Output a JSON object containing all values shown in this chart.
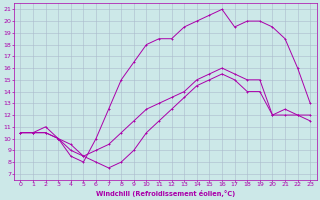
{
  "xlabel": "Windchill (Refroidissement éolien,°C)",
  "background_color": "#cce8e8",
  "grid_color": "#aabbcc",
  "line_color": "#aa00aa",
  "xlim": [
    -0.5,
    23.5
  ],
  "ylim": [
    6.5,
    21.5
  ],
  "xticks": [
    0,
    1,
    2,
    3,
    4,
    5,
    6,
    7,
    8,
    9,
    10,
    11,
    12,
    13,
    14,
    15,
    16,
    17,
    18,
    19,
    20,
    21,
    22,
    23
  ],
  "yticks": [
    7,
    8,
    9,
    10,
    11,
    12,
    13,
    14,
    15,
    16,
    17,
    18,
    19,
    20,
    21
  ],
  "s1_x": [
    0,
    1,
    2,
    3,
    4,
    5,
    6,
    7,
    8,
    9,
    10,
    11,
    12,
    13,
    14,
    15,
    16,
    17,
    18,
    19,
    20,
    21,
    22,
    23
  ],
  "s1_y": [
    10.5,
    10.5,
    10.5,
    10.0,
    9.5,
    8.5,
    8.0,
    7.5,
    8.0,
    9.0,
    10.5,
    11.5,
    12.5,
    13.5,
    14.5,
    15.0,
    15.5,
    15.0,
    14.0,
    14.0,
    12.0,
    12.5,
    12.0,
    11.5
  ],
  "s2_x": [
    0,
    1,
    2,
    3,
    4,
    5,
    6,
    7,
    8,
    9,
    10,
    11,
    12,
    13,
    14,
    15,
    16,
    17,
    18,
    19,
    20,
    21,
    22,
    23
  ],
  "s2_y": [
    10.5,
    10.5,
    11.0,
    10.0,
    8.5,
    8.0,
    10.0,
    12.5,
    15.0,
    16.5,
    18.0,
    18.5,
    18.5,
    19.5,
    20.0,
    20.5,
    21.0,
    19.5,
    20.0,
    20.0,
    19.5,
    18.5,
    16.0,
    13.0
  ],
  "s3_x": [
    0,
    1,
    2,
    3,
    4,
    5,
    6,
    7,
    8,
    9,
    10,
    11,
    12,
    13,
    14,
    15,
    16,
    17,
    18,
    19,
    20,
    21,
    22,
    23
  ],
  "s3_y": [
    10.5,
    10.5,
    10.5,
    10.0,
    9.0,
    8.5,
    9.0,
    9.5,
    10.5,
    11.5,
    12.5,
    13.0,
    13.5,
    14.0,
    15.0,
    15.5,
    16.0,
    15.5,
    15.0,
    15.0,
    12.0,
    12.0,
    12.0,
    12.0
  ]
}
